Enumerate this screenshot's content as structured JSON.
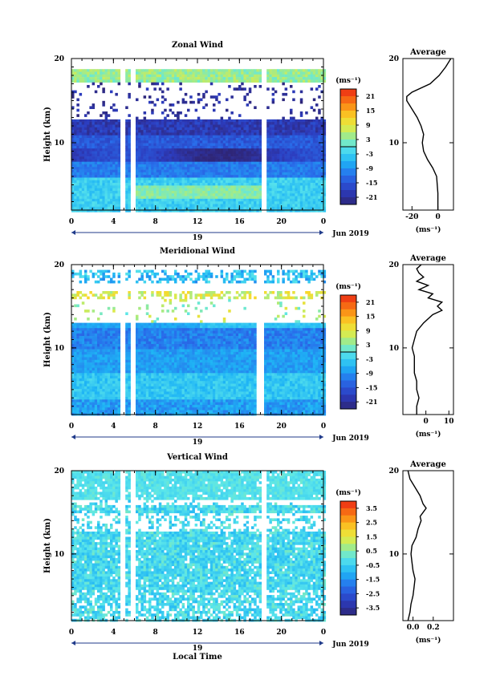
{
  "page": {
    "x_axis_label": "Local Time",
    "date_label": "Jun 2019",
    "day_label": "19"
  },
  "chart_data": [
    {
      "type": "heatmap",
      "title": "Zonal Wind",
      "ylabel": "Height (km)",
      "unit": "(ms⁻¹)",
      "xlim": [
        0,
        24
      ],
      "x_ticks": [
        "0",
        "4",
        "8",
        "12",
        "16",
        "20",
        "0"
      ],
      "ylim": [
        2,
        20
      ],
      "y_ticks": [
        "10",
        "20"
      ],
      "colorbar_ticks": [
        "21",
        "15",
        "9",
        "3",
        "-3",
        "-9",
        "-15",
        "-21"
      ],
      "colorbar_range": [
        -24,
        24
      ],
      "data_gaps_hours": [
        [
          4.5,
          4.9
        ],
        [
          5.5,
          5.9
        ],
        [
          18.0,
          18.5
        ]
      ],
      "profile": {
        "title": "Average",
        "xlabel": "(ms⁻¹)",
        "x_ticks": [
          "-20",
          "0"
        ],
        "xlim": [
          -27,
          12
        ],
        "y_ticks": [
          "10",
          "20"
        ],
        "heights_km": [
          2,
          4,
          6,
          7,
          8,
          9,
          10,
          11,
          12,
          13,
          14,
          15,
          15.5,
          16,
          17,
          18,
          19,
          20
        ],
        "values": [
          0,
          0,
          -1,
          -4,
          -8,
          -11,
          -12,
          -11,
          -13,
          -16,
          -20,
          -24,
          -24,
          -20,
          -6,
          1,
          6,
          10
        ]
      }
    },
    {
      "type": "heatmap",
      "title": "Meridional Wind",
      "ylabel": "Height (km)",
      "unit": "(ms⁻¹)",
      "xlim": [
        0,
        24
      ],
      "x_ticks": [
        "0",
        "4",
        "8",
        "12",
        "16",
        "20",
        "0"
      ],
      "ylim": [
        2,
        20
      ],
      "y_ticks": [
        "10",
        "20"
      ],
      "colorbar_ticks": [
        "21",
        "15",
        "9",
        "3",
        "-3",
        "-9",
        "-15",
        "-21"
      ],
      "colorbar_range": [
        -24,
        24
      ],
      "data_gaps_hours": [
        [
          4.5,
          4.9
        ],
        [
          5.5,
          5.9
        ],
        [
          17.5,
          18.2
        ]
      ],
      "profile": {
        "title": "Average",
        "xlabel": "(ms⁻¹)",
        "x_ticks": [
          "0",
          "10"
        ],
        "xlim": [
          -10,
          12
        ],
        "y_ticks": [
          "10",
          "20"
        ],
        "heights_km": [
          2,
          3,
          4,
          5,
          6,
          7,
          8,
          9,
          10,
          11,
          12,
          13,
          14,
          14.5,
          15,
          15.5,
          16,
          16.5,
          17,
          17.5,
          18,
          18.5,
          19,
          19.5,
          20
        ],
        "values": [
          -4,
          -4,
          -3,
          -4,
          -4,
          -5,
          -5,
          -5,
          -6,
          -5,
          -4,
          -1,
          3,
          7,
          5,
          7,
          1,
          3,
          -3,
          1,
          -4,
          -1,
          -3,
          -4,
          -2
        ]
      }
    },
    {
      "type": "heatmap",
      "title": "Vertical Wind",
      "ylabel": "Height (km)",
      "unit": "(ms⁻¹)",
      "xlim": [
        0,
        24
      ],
      "x_ticks": [
        "0",
        "4",
        "8",
        "12",
        "16",
        "20",
        "0"
      ],
      "ylim": [
        2,
        20
      ],
      "y_ticks": [
        "10",
        "20"
      ],
      "colorbar_ticks": [
        "3.5",
        "2.5",
        "1.5",
        "0.5",
        "-0.5",
        "-1.5",
        "-2.5",
        "-3.5"
      ],
      "colorbar_range": [
        -4,
        4
      ],
      "data_gaps_hours": [
        [
          4.5,
          4.9
        ],
        [
          5.5,
          5.9
        ],
        [
          18.0,
          18.5
        ]
      ],
      "profile": {
        "title": "Average",
        "xlabel": "(ms⁻¹)",
        "x_ticks": [
          "0.0",
          "0.2"
        ],
        "xlim": [
          -0.1,
          0.4
        ],
        "y_ticks": [
          "10",
          "20"
        ],
        "heights_km": [
          2,
          3,
          4,
          5,
          6,
          7,
          8,
          9,
          10,
          11,
          12,
          13,
          14,
          14.5,
          15,
          15.5,
          16,
          17,
          18,
          19,
          20
        ],
        "values": [
          -0.05,
          -0.03,
          -0.02,
          0,
          0.01,
          0.02,
          0,
          -0.01,
          -0.02,
          -0.01,
          0.03,
          0.05,
          0.08,
          0.07,
          0.1,
          0.13,
          0.1,
          0.07,
          0.02,
          -0.03,
          -0.05
        ]
      }
    }
  ]
}
